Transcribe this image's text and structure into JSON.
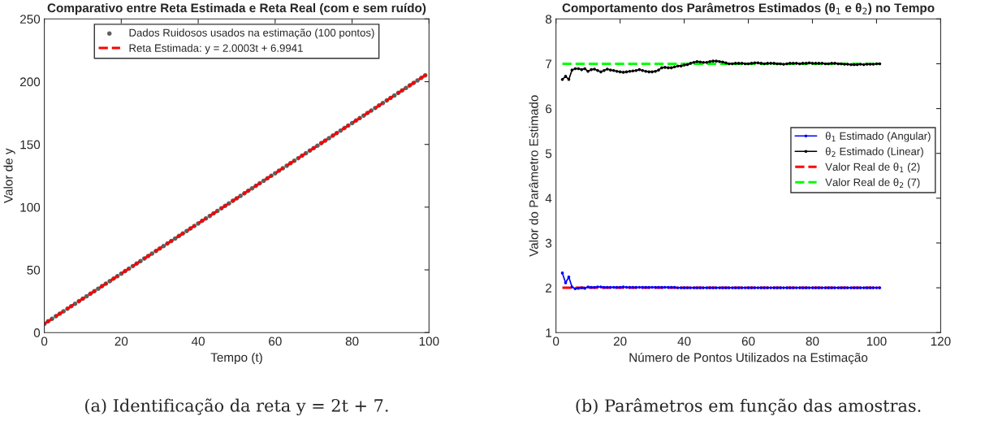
{
  "chart_data": [
    {
      "type": "scatter",
      "title": "Comparativo entre Reta Estimada e Reta Real (com e sem ruído)",
      "xlabel": "Tempo (t)",
      "ylabel": "Valor de y",
      "xlim": [
        0,
        100
      ],
      "xticks": [
        0,
        20,
        40,
        60,
        80,
        100
      ],
      "ylim": [
        0,
        250
      ],
      "yticks": [
        0,
        50,
        100,
        150,
        200,
        250
      ],
      "grid": false,
      "legend": "top",
      "annotations": [
        "(a) Identificação da reta y = 2t + 7."
      ],
      "series": [
        {
          "name": "Dados Ruidosos usados na estimação (100 pontos)",
          "type": "scatter",
          "color": "#5f5f5f",
          "marker": "circle",
          "x": [
            0,
            1,
            2,
            3,
            4,
            5,
            6,
            7,
            8,
            9,
            10,
            11,
            12,
            13,
            14,
            15,
            16,
            17,
            18,
            19,
            20,
            21,
            22,
            23,
            24,
            25,
            26,
            27,
            28,
            29,
            30,
            31,
            32,
            33,
            34,
            35,
            36,
            37,
            38,
            39,
            40,
            41,
            42,
            43,
            44,
            45,
            46,
            47,
            48,
            49,
            50,
            51,
            52,
            53,
            54,
            55,
            56,
            57,
            58,
            59,
            60,
            61,
            62,
            63,
            64,
            65,
            66,
            67,
            68,
            69,
            70,
            71,
            72,
            73,
            74,
            75,
            76,
            77,
            78,
            79,
            80,
            81,
            82,
            83,
            84,
            85,
            86,
            87,
            88,
            89,
            90,
            91,
            92,
            93,
            94,
            95,
            96,
            97,
            98,
            99
          ],
          "values": [
            7,
            9,
            11,
            13,
            15,
            17,
            19,
            21,
            23,
            25,
            27,
            29,
            31,
            33,
            35,
            37,
            39,
            41,
            43,
            45,
            47,
            49,
            51,
            53,
            55,
            57,
            59,
            61,
            63,
            65,
            67,
            69,
            71,
            73,
            75,
            77,
            79,
            81,
            83,
            85,
            87,
            89,
            91,
            93,
            95,
            97,
            99,
            101,
            103,
            105,
            107,
            109,
            111,
            113,
            115,
            117,
            119,
            121,
            123,
            125,
            127,
            129,
            131,
            133,
            135,
            137,
            139,
            141,
            143,
            145,
            147,
            149,
            151,
            153,
            155,
            157,
            159,
            161,
            163,
            165,
            167,
            169,
            171,
            173,
            175,
            177,
            179,
            181,
            183,
            185,
            187,
            189,
            191,
            193,
            195,
            197,
            199,
            201,
            203,
            205
          ]
        },
        {
          "name": "Reta Estimada: y = 2.0003t + 6.9941",
          "type": "line",
          "color": "#ff0000",
          "line_style": "dashed",
          "marker": "none",
          "x": [
            0,
            100
          ],
          "values": [
            7,
            207
          ]
        }
      ]
    },
    {
      "type": "line",
      "title": "Comportamento dos Parâmetros Estimados (θ$_{1}$ e θ$_{2}$) no Tempo",
      "xlabel": "Número de Pontos Utilizados na Estimação",
      "ylabel": "Valor do Parâmetro Estimado",
      "xlim": [
        0,
        120
      ],
      "xticks": [
        0,
        20,
        40,
        60,
        80,
        100,
        120
      ],
      "ylim": [
        1,
        8
      ],
      "yticks": [
        1,
        2,
        3,
        4,
        5,
        6,
        7,
        8
      ],
      "grid": false,
      "legend": "right",
      "annotations": [
        "(b) Parâmetros em função das amostras."
      ],
      "series": [
        {
          "name": "θ$_{1}$ Estimado (Angular)",
          "color": "#0000ff",
          "marker": "circle",
          "line_style": "solid",
          "x": [
            2,
            3,
            4,
            5,
            6,
            7,
            8,
            9,
            10,
            11,
            12,
            13,
            14,
            15,
            16,
            17,
            18,
            19,
            20,
            21,
            22,
            23,
            24,
            25,
            26,
            27,
            28,
            29,
            30,
            31,
            32,
            33,
            34,
            35,
            36,
            37,
            38,
            39,
            40,
            41,
            42,
            43,
            44,
            45,
            46,
            47,
            48,
            49,
            50,
            51,
            52,
            53,
            54,
            55,
            56,
            57,
            58,
            59,
            60,
            61,
            62,
            63,
            64,
            65,
            66,
            67,
            68,
            69,
            70,
            71,
            72,
            73,
            74,
            75,
            76,
            77,
            78,
            79,
            80,
            81,
            82,
            83,
            84,
            85,
            86,
            87,
            88,
            89,
            90,
            91,
            92,
            93,
            94,
            95,
            96,
            97,
            98,
            99,
            100,
            101
          ],
          "values": [
            2.33,
            2.11,
            2.24,
            2.02,
            1.98,
            1.99,
            2.0,
            1.99,
            2.02,
            2.01,
            2.01,
            2.02,
            2.02,
            2.01,
            2.01,
            2.01,
            2.01,
            2.01,
            2.01,
            2.02,
            2.01,
            2.01,
            2.01,
            2.01,
            2.01,
            2.01,
            2.01,
            2.01,
            2.01,
            2.01,
            2.01,
            2.01,
            2.01,
            2.01,
            2.01,
            2.01,
            2.0,
            2.0,
            2.0,
            2.0,
            2.0,
            2.0,
            2.0,
            2.0,
            2.0,
            2.0,
            2.0,
            2.0,
            2.0,
            2.0,
            2.0,
            2.0,
            2.0,
            2.0,
            2.0,
            2.0,
            2.0,
            2.0,
            2.0,
            2.0,
            2.0,
            2.0,
            2.0,
            2.0,
            2.0,
            2.0,
            2.0,
            2.0,
            2.0,
            2.0,
            2.0,
            2.0,
            2.0,
            2.0,
            2.0,
            2.0,
            2.0,
            2.0,
            2.0,
            2.0,
            2.0,
            2.0,
            2.0,
            2.0,
            2.0,
            2.0,
            2.0,
            2.0,
            2.0,
            2.0,
            2.0,
            2.0,
            2.0,
            2.0,
            2.0,
            2.0,
            2.0,
            2.0,
            2.0,
            2.0
          ]
        },
        {
          "name": "θ$_{2}$ Estimado (Linear)",
          "color": "#000000",
          "marker": "circle",
          "line_style": "solid",
          "x": [
            2,
            3,
            4,
            5,
            6,
            7,
            8,
            9,
            10,
            11,
            12,
            13,
            14,
            15,
            16,
            17,
            18,
            19,
            20,
            21,
            22,
            23,
            24,
            25,
            26,
            27,
            28,
            29,
            30,
            31,
            32,
            33,
            34,
            35,
            36,
            37,
            38,
            39,
            40,
            41,
            42,
            43,
            44,
            45,
            46,
            47,
            48,
            49,
            50,
            51,
            52,
            53,
            54,
            55,
            56,
            57,
            58,
            59,
            60,
            61,
            62,
            63,
            64,
            65,
            66,
            67,
            68,
            69,
            70,
            71,
            72,
            73,
            74,
            75,
            76,
            77,
            78,
            79,
            80,
            81,
            82,
            83,
            84,
            85,
            86,
            87,
            88,
            89,
            90,
            91,
            92,
            93,
            94,
            95,
            96,
            97,
            98,
            99,
            100,
            101
          ],
          "values": [
            6.65,
            6.72,
            6.65,
            6.86,
            6.89,
            6.89,
            6.87,
            6.89,
            6.83,
            6.87,
            6.88,
            6.85,
            6.82,
            6.85,
            6.88,
            6.86,
            6.85,
            6.83,
            6.82,
            6.81,
            6.82,
            6.83,
            6.84,
            6.85,
            6.87,
            6.85,
            6.83,
            6.82,
            6.82,
            6.83,
            6.86,
            6.91,
            6.92,
            6.91,
            6.91,
            6.93,
            6.95,
            6.95,
            6.97,
            6.98,
            7.01,
            7.03,
            7.05,
            7.04,
            7.03,
            7.03,
            7.05,
            7.06,
            7.06,
            7.05,
            7.04,
            7.02,
            7.0,
            7.0,
            7.01,
            7.01,
            7.01,
            7.0,
            7.0,
            7.01,
            7.02,
            7.02,
            7.01,
            7.0,
            7.01,
            7.01,
            7.01,
            7.0,
            7.0,
            6.99,
            7.0,
            7.01,
            7.01,
            7.01,
            7.0,
            7.01,
            7.01,
            7.02,
            7.01,
            7.01,
            7.01,
            7.01,
            7.0,
            7.0,
            7.01,
            7.01,
            7.0,
            7.0,
            6.99,
            6.99,
            6.98,
            6.98,
            6.98,
            6.99,
            6.98,
            6.99,
            6.99,
            6.99,
            7.0,
            7.0
          ]
        },
        {
          "name": "Valor Real de θ$_{1}$ (2)",
          "color": "#ff0000",
          "marker": "none",
          "line_style": "dashed",
          "x": [
            2,
            101
          ],
          "values": [
            2,
            2
          ]
        },
        {
          "name": "Valor Real de θ$_{2}$ (7)",
          "color": "#00ff00",
          "marker": "none",
          "line_style": "dashed",
          "x": [
            2,
            101
          ],
          "values": [
            7,
            7
          ]
        }
      ]
    }
  ]
}
